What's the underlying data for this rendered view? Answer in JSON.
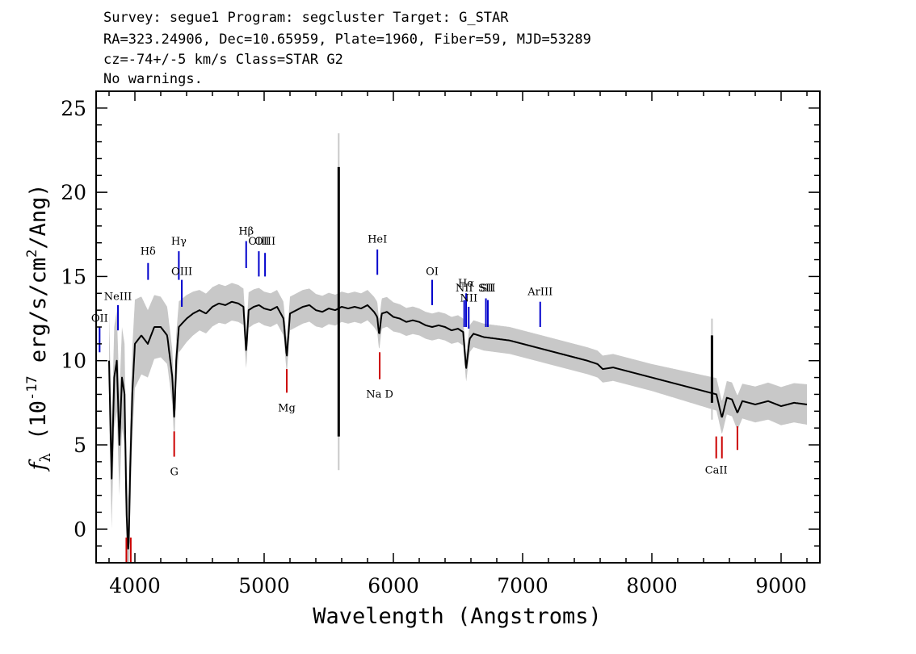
{
  "header": {
    "line1": "Survey: segue1 Program: segcluster Target: G_STAR",
    "line2": "RA=323.24906, Dec=10.65959, Plate=1960, Fiber=59, MJD=53289",
    "line3": "cz=-74+/-5 km/s Class=STAR G2",
    "line4": "No warnings."
  },
  "chart_data": {
    "type": "line",
    "xlabel": "Wavelength (Angstroms)",
    "ylabel": "f_λ (10^-17 erg/s/cm^2/Ang)",
    "xlim": [
      3700,
      9300
    ],
    "ylim": [
      -2,
      26
    ],
    "x_ticks": [
      4000,
      5000,
      6000,
      7000,
      8000,
      9000
    ],
    "y_ticks": [
      0,
      5,
      10,
      15,
      20,
      25
    ],
    "grid": false,
    "colors": {
      "flux": "#000000",
      "error_band": "#c8c8c8",
      "emission_marker": "#0000cc",
      "absorption_marker": "#cc0000"
    },
    "series": [
      {
        "role": "flux",
        "x": [
          3800,
          3820,
          3840,
          3860,
          3880,
          3900,
          3920,
          3935,
          3950,
          3965,
          3980,
          4000,
          4050,
          4100,
          4150,
          4200,
          4250,
          4290,
          4305,
          4320,
          4340,
          4400,
          4450,
          4500,
          4550,
          4600,
          4650,
          4700,
          4750,
          4800,
          4840,
          4861,
          4880,
          4920,
          4960,
          5000,
          5050,
          5100,
          5150,
          5175,
          5200,
          5250,
          5300,
          5350,
          5400,
          5450,
          5500,
          5550,
          5600,
          5650,
          5700,
          5750,
          5800,
          5850,
          5875,
          5890,
          5910,
          5950,
          6000,
          6050,
          6100,
          6150,
          6200,
          6250,
          6300,
          6350,
          6400,
          6450,
          6500,
          6540,
          6563,
          6590,
          6620,
          6700,
          6800,
          6900,
          7000,
          7100,
          7200,
          7300,
          7400,
          7500,
          7580,
          7620,
          7700,
          7800,
          7900,
          8000,
          8100,
          8200,
          8300,
          8400,
          8500,
          8542,
          8580,
          8620,
          8662,
          8700,
          8800,
          8900,
          9000,
          9100,
          9200
        ],
        "y": [
          10,
          3,
          9,
          10,
          5,
          9,
          8,
          1,
          -1.5,
          4,
          8,
          11,
          11.5,
          11,
          12,
          12,
          11.5,
          9,
          6.5,
          10,
          12,
          12.5,
          12.8,
          13,
          12.8,
          13.2,
          13.4,
          13.3,
          13.5,
          13.4,
          13.2,
          10.5,
          13,
          13.2,
          13.3,
          13.1,
          13,
          13.2,
          12.5,
          10.2,
          12.8,
          13,
          13.2,
          13.3,
          13,
          12.9,
          13.1,
          13,
          13.2,
          13.1,
          13.2,
          13.1,
          13.3,
          12.9,
          12.6,
          11.5,
          12.8,
          12.9,
          12.6,
          12.5,
          12.3,
          12.4,
          12.3,
          12.1,
          12,
          12.1,
          12,
          11.8,
          11.9,
          11.7,
          9.5,
          11.3,
          11.6,
          11.4,
          11.3,
          11.2,
          11,
          10.8,
          10.6,
          10.4,
          10.2,
          10,
          9.8,
          9.5,
          9.6,
          9.4,
          9.2,
          9,
          8.8,
          8.6,
          8.4,
          8.2,
          8,
          6.6,
          7.8,
          7.7,
          6.9,
          7.6,
          7.4,
          7.6,
          7.3,
          7.5,
          7.4
        ]
      },
      {
        "role": "error",
        "x": [
          3800,
          3940,
          4100,
          4300,
          4500,
          4800,
          5000,
          5300,
          5600,
          5900,
          6200,
          6500,
          6800,
          7100,
          7400,
          7700,
          8000,
          8300,
          8600,
          8900,
          9200
        ],
        "y": [
          3.0,
          3.0,
          2.0,
          1.6,
          1.2,
          1.1,
          1.0,
          1.0,
          0.9,
          0.9,
          0.8,
          0.8,
          0.8,
          0.8,
          0.8,
          0.8,
          0.8,
          0.9,
          1.0,
          1.1,
          1.2
        ]
      }
    ],
    "spikes": [
      {
        "x": 5577,
        "y_top": 21.5,
        "y_bottom": 5.5,
        "err_top": 23.5,
        "err_bottom": 3.5
      },
      {
        "x": 8465,
        "y_top": 11.5,
        "y_bottom": 7.5,
        "err_top": 12.5,
        "err_bottom": 6.5
      }
    ],
    "lines": {
      "emission": [
        {
          "label": "OII",
          "x": 3727,
          "y0": 10.5,
          "y1": 12,
          "text_y": 12.3
        },
        {
          "label": "NeIII",
          "x": 3869,
          "y0": 11.8,
          "y1": 13.3,
          "text_y": 13.6
        },
        {
          "label": "Hδ",
          "x": 4102,
          "y0": 14.8,
          "y1": 15.8,
          "text_y": 16.3
        },
        {
          "label": "Hγ",
          "x": 4340,
          "y0": 14.8,
          "y1": 16.5,
          "text_y": 16.9
        },
        {
          "label": "OIII",
          "x": 4363,
          "y0": 13.2,
          "y1": 14.8,
          "text_y": 15.1
        },
        {
          "label": "Hβ",
          "x": 4861,
          "y0": 15.5,
          "y1": 17.1,
          "text_y": 17.5
        },
        {
          "label": "OIII",
          "x": 4959,
          "y0": 15,
          "y1": 16.5,
          "text_y": 16.9
        },
        {
          "label": "OIII",
          "x": 5007,
          "y0": 15,
          "y1": 16.4,
          "text_y": 16.9
        },
        {
          "label": "HeI",
          "x": 5876,
          "y0": 15.1,
          "y1": 16.6,
          "text_y": 17.0
        },
        {
          "label": "OI",
          "x": 6300,
          "y0": 13.3,
          "y1": 14.8,
          "text_y": 15.1
        },
        {
          "label": "NII",
          "x": 6548,
          "y0": 12.0,
          "y1": 13.6,
          "text_y": 14.1
        },
        {
          "label": "Hα",
          "x": 6563,
          "y0": 12.0,
          "y1": 14.0,
          "text_y": 14.4
        },
        {
          "label": "NII",
          "x": 6583,
          "y0": 11.9,
          "y1": 13.2,
          "text_y": 13.5
        },
        {
          "label": "SII",
          "x": 6716,
          "y0": 12.0,
          "y1": 13.7,
          "text_y": 14.1
        },
        {
          "label": "SII",
          "x": 6731,
          "y0": 12.0,
          "y1": 13.6,
          "text_y": 14.1
        },
        {
          "label": "ArIII",
          "x": 7136,
          "y0": 12.0,
          "y1": 13.5,
          "text_y": 13.9
        }
      ],
      "absorption": [
        {
          "label": "",
          "x": 3934,
          "y0": -2,
          "y1": -0.5
        },
        {
          "label": "",
          "x": 3968,
          "y0": -2,
          "y1": -0.5
        },
        {
          "label": "G",
          "x": 4304,
          "y0": 5.8,
          "y1": 4.3,
          "text_y": 3.2
        },
        {
          "label": "Mg",
          "x": 5175,
          "y0": 9.5,
          "y1": 8.1,
          "text_y": 7.0
        },
        {
          "label": "Na D",
          "x": 5894,
          "y0": 10.5,
          "y1": 8.9,
          "text_y": 7.8
        },
        {
          "label": "CaII",
          "x": 8498,
          "y0": 5.5,
          "y1": 4.2,
          "text_y": 3.3
        },
        {
          "label": "",
          "x": 8542,
          "y0": 5.5,
          "y1": 4.2
        },
        {
          "label": "",
          "x": 8662,
          "y0": 6.1,
          "y1": 4.7
        }
      ]
    }
  }
}
